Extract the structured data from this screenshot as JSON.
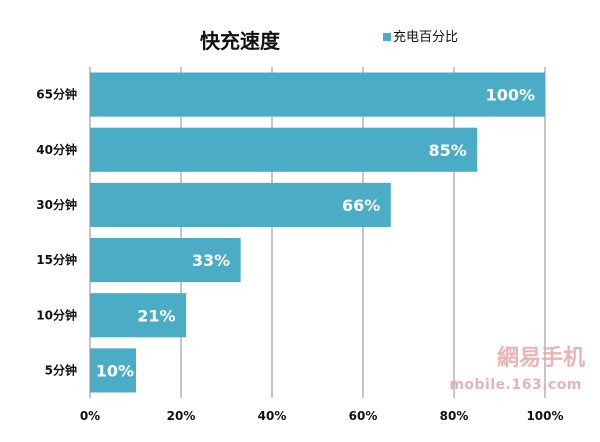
{
  "colors": {
    "bar": "#4bacc6",
    "grid": "#8c8c8c",
    "axis": "#8c8c8c",
    "watermark": "#e8a7a7"
  },
  "watermark": {
    "brand": "網易手机",
    "url": "mobile.163.com"
  },
  "chart_data": {
    "type": "bar",
    "orientation": "horizontal",
    "title": "快充速度",
    "legend": {
      "entries": [
        "充电百分比"
      ],
      "placement": "top-right"
    },
    "categories": [
      "65分钟",
      "40分钟",
      "30分钟",
      "15分钟",
      "10分钟",
      "5分钟"
    ],
    "series": [
      {
        "name": "充电百分比",
        "values": [
          100,
          85,
          66,
          33,
          21,
          10
        ]
      }
    ],
    "data_labels": [
      "100%",
      "85%",
      "66%",
      "33%",
      "21%",
      "10%"
    ],
    "x_ticks": [
      "0%",
      "20%",
      "40%",
      "60%",
      "80%",
      "100%"
    ],
    "xlim": [
      0,
      100
    ],
    "grid": true,
    "xlabel": "",
    "ylabel": ""
  }
}
